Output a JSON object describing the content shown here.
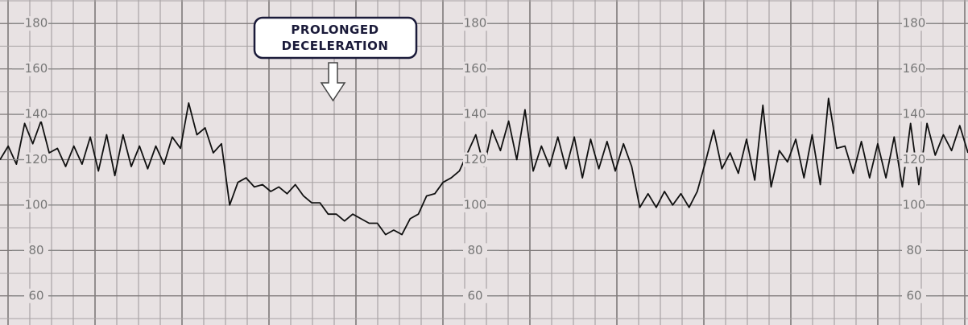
{
  "chart_data": {
    "type": "line",
    "annotation": [
      "PROLONGED",
      "DECELERATION"
    ],
    "ylim": [
      50,
      190
    ],
    "yticks": [
      60,
      80,
      100,
      120,
      140,
      160,
      180
    ],
    "grid": true,
    "series": [
      {
        "color": "#111111",
        "values": [
          120,
          126,
          118,
          136,
          127,
          137,
          123,
          125,
          117,
          126,
          118,
          130,
          115,
          131,
          113,
          131,
          117,
          126,
          116,
          126,
          118,
          130,
          125,
          145,
          131,
          134,
          123,
          127,
          100,
          110,
          112,
          108,
          109,
          106,
          108,
          105,
          109,
          104,
          101,
          101,
          96,
          96,
          93,
          96,
          94,
          92,
          92,
          87,
          89,
          87,
          94,
          96,
          104,
          105,
          110,
          112,
          115,
          123,
          131,
          117,
          133,
          124,
          137,
          120,
          142,
          115,
          126,
          117,
          130,
          116,
          130,
          112,
          129,
          116,
          128,
          115,
          127,
          117,
          99,
          105,
          99,
          106,
          100,
          105,
          99,
          106,
          119,
          133,
          116,
          123,
          114,
          129,
          111,
          144,
          108,
          124,
          119,
          129,
          112,
          131,
          109,
          147,
          125,
          126,
          114,
          128,
          112,
          127,
          112,
          130,
          108,
          136,
          109,
          136,
          122,
          131,
          124,
          135,
          123
        ]
      }
    ]
  }
}
